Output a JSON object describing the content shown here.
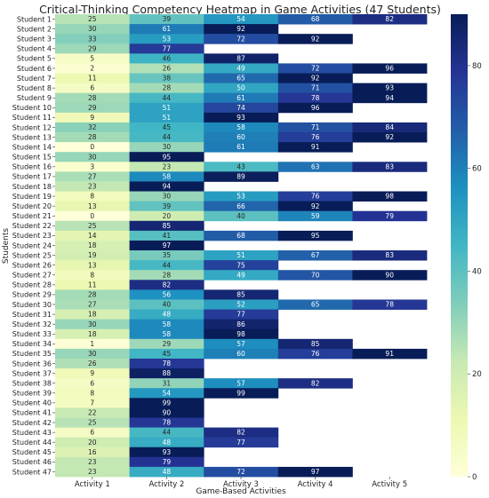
{
  "chart_data": {
    "type": "heatmap",
    "title": "Critical-Thinking Competency Heatmap in Game Activities (47 Students)",
    "xlabel": "Game-Based Activities",
    "ylabel": "Students",
    "columns": [
      "Activity 1",
      "Activity 2",
      "Activity 3",
      "Activity 4",
      "Activity 5"
    ],
    "rows": [
      "Student 1",
      "Student 2",
      "Student 3",
      "Student 4",
      "Student 5",
      "Student 6",
      "Student 7",
      "Student 8",
      "Student 9",
      "Student 10",
      "Student 11",
      "Student 12",
      "Student 13",
      "Student 14",
      "Student 15",
      "Student 16",
      "Student 17",
      "Student 18",
      "Student 19",
      "Student 20",
      "Student 21",
      "Student 22",
      "Student 23",
      "Student 24",
      "Student 25",
      "Student 26",
      "Student 27",
      "Student 28",
      "Student 29",
      "Student 30",
      "Student 31",
      "Student 32",
      "Student 33",
      "Student 34",
      "Student 35",
      "Student 36",
      "Student 37",
      "Student 38",
      "Student 39",
      "Student 40",
      "Student 41",
      "Student 42",
      "Student 43",
      "Student 44",
      "Student 45",
      "Student 46",
      "Student 47"
    ],
    "values": [
      [
        25,
        39,
        54,
        68,
        82
      ],
      [
        30,
        61,
        92,
        null,
        null
      ],
      [
        33,
        53,
        72,
        92,
        null
      ],
      [
        29,
        77,
        null,
        null,
        null
      ],
      [
        5,
        46,
        87,
        null,
        null
      ],
      [
        2,
        26,
        49,
        72,
        96
      ],
      [
        11,
        38,
        65,
        92,
        null
      ],
      [
        6,
        28,
        50,
        71,
        93
      ],
      [
        28,
        44,
        61,
        78,
        94
      ],
      [
        29,
        51,
        74,
        96,
        null
      ],
      [
        9,
        51,
        93,
        null,
        null
      ],
      [
        32,
        45,
        58,
        71,
        84
      ],
      [
        28,
        44,
        60,
        76,
        92
      ],
      [
        0,
        30,
        61,
        91,
        null
      ],
      [
        30,
        95,
        null,
        null,
        null
      ],
      [
        3,
        23,
        43,
        63,
        83
      ],
      [
        27,
        58,
        89,
        null,
        null
      ],
      [
        23,
        94,
        null,
        null,
        null
      ],
      [
        8,
        30,
        53,
        76,
        98
      ],
      [
        13,
        39,
        66,
        92,
        null
      ],
      [
        0,
        20,
        40,
        59,
        79
      ],
      [
        25,
        85,
        null,
        null,
        null
      ],
      [
        14,
        41,
        68,
        95,
        null
      ],
      [
        18,
        97,
        null,
        null,
        null
      ],
      [
        19,
        35,
        51,
        67,
        83
      ],
      [
        13,
        44,
        75,
        null,
        null
      ],
      [
        8,
        28,
        49,
        70,
        90
      ],
      [
        11,
        82,
        null,
        null,
        null
      ],
      [
        28,
        56,
        85,
        null,
        null
      ],
      [
        27,
        40,
        52,
        65,
        78
      ],
      [
        18,
        48,
        77,
        null,
        null
      ],
      [
        30,
        58,
        86,
        null,
        null
      ],
      [
        18,
        58,
        98,
        null,
        null
      ],
      [
        1,
        29,
        57,
        85,
        null
      ],
      [
        30,
        45,
        60,
        76,
        91
      ],
      [
        26,
        78,
        null,
        null,
        null
      ],
      [
        9,
        88,
        null,
        null,
        null
      ],
      [
        6,
        31,
        57,
        82,
        null
      ],
      [
        8,
        54,
        99,
        null,
        null
      ],
      [
        7,
        99,
        null,
        null,
        null
      ],
      [
        22,
        90,
        null,
        null,
        null
      ],
      [
        25,
        78,
        null,
        null,
        null
      ],
      [
        6,
        44,
        82,
        null,
        null
      ],
      [
        20,
        48,
        77,
        null,
        null
      ],
      [
        16,
        93,
        null,
        null,
        null
      ],
      [
        23,
        79,
        null,
        null,
        null
      ],
      [
        23,
        48,
        72,
        97,
        null
      ]
    ],
    "colorbar": {
      "min": 0,
      "max": 90,
      "ticks": [
        0,
        20,
        40,
        60,
        80
      ],
      "colormap": "YlGnBu"
    }
  }
}
